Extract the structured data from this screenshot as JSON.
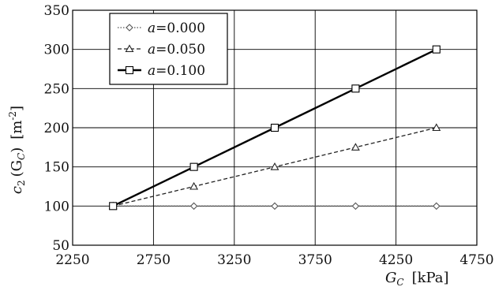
{
  "chart_data": {
    "type": "line",
    "x": [
      2500,
      3000,
      3500,
      4000,
      4500
    ],
    "series": [
      {
        "name": "a=0.000",
        "label_var": "a",
        "label_val": "=0.000",
        "values": [
          100,
          100,
          100,
          100,
          100
        ],
        "marker": "diamond",
        "dash": "dotted",
        "color": "#555555"
      },
      {
        "name": "a=0.050",
        "label_var": "a",
        "label_val": "=0.050",
        "values": [
          100,
          125,
          150,
          175,
          200
        ],
        "marker": "triangle",
        "dash": "dashed",
        "color": "#222222"
      },
      {
        "name": "a=0.100",
        "label_var": "a",
        "label_val": "=0.100",
        "values": [
          100,
          150,
          200,
          250,
          300
        ],
        "marker": "square",
        "dash": "solid",
        "color": "#000000"
      }
    ],
    "xlim": [
      2250,
      4750
    ],
    "ylim": [
      50,
      350
    ],
    "xticks": [
      2250,
      2750,
      3250,
      3750,
      4250,
      4750
    ],
    "yticks": [
      50,
      100,
      150,
      200,
      250,
      300,
      350
    ],
    "xlabel": {
      "var": "G",
      "sub": "C",
      "unit": "[kPa]"
    },
    "ylabel": {
      "var": "c",
      "sub": "2",
      "arg": "(G",
      "argsub": "C",
      "close": ")",
      "unit": "[m",
      "sup": "-2",
      "unitclose": "]"
    },
    "grid": true,
    "legend": "top-left"
  }
}
